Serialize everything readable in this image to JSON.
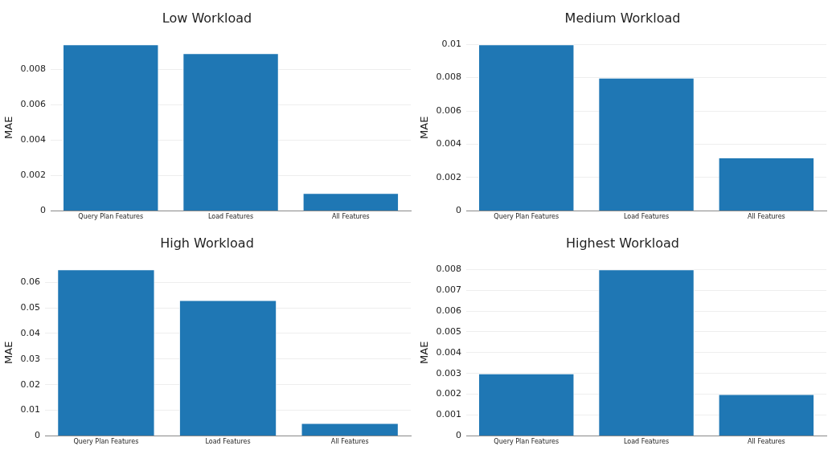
{
  "chart_data": [
    {
      "type": "bar",
      "title": "Low Workload",
      "ylabel": "MAE",
      "categories": [
        "Query Plan Features",
        "Load Features",
        "All Features"
      ],
      "values": [
        0.0094,
        0.0089,
        0.001
      ],
      "color": "#1f77b4",
      "ylim": [
        0,
        0.0094
      ],
      "yticks": [
        0,
        0.002,
        0.004,
        0.006,
        0.008
      ],
      "grid": "y"
    },
    {
      "type": "bar",
      "title": "Medium Workload",
      "ylabel": "MAE",
      "categories": [
        "Query Plan Features",
        "Load Features",
        "All Features"
      ],
      "values": [
        0.01,
        0.008,
        0.0032
      ],
      "color": "#1f77b4",
      "ylim": [
        0,
        0.01
      ],
      "yticks": [
        0,
        0.002,
        0.004,
        0.006,
        0.008,
        0.01
      ],
      "grid": "y"
    },
    {
      "type": "bar",
      "title": "High Workload",
      "ylabel": "MAE",
      "categories": [
        "Query Plan Features",
        "Load Features",
        "All Features"
      ],
      "values": [
        0.065,
        0.053,
        0.005
      ],
      "color": "#1f77b4",
      "ylim": [
        0,
        0.065
      ],
      "yticks": [
        0,
        0.01,
        0.02,
        0.03,
        0.04,
        0.05,
        0.06
      ],
      "grid": "y"
    },
    {
      "type": "bar",
      "title": "Highest Workload",
      "ylabel": "MAE",
      "categories": [
        "Query Plan Features",
        "Load Features",
        "All Features"
      ],
      "values": [
        0.003,
        0.008,
        0.002
      ],
      "color": "#1f77b4",
      "ylim": [
        0,
        0.008
      ],
      "yticks": [
        0,
        0.001,
        0.002,
        0.003,
        0.004,
        0.005,
        0.006,
        0.007,
        0.008
      ],
      "grid": "y"
    }
  ]
}
